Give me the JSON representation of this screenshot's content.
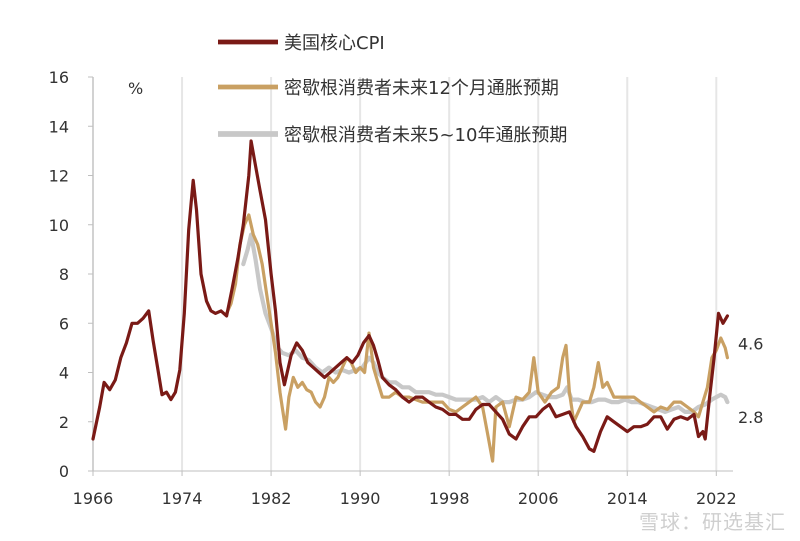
{
  "chart_data": {
    "type": "line",
    "unit_label": "%",
    "ylim": [
      0,
      16
    ],
    "yticks": [
      0,
      2,
      4,
      6,
      8,
      10,
      12,
      14,
      16
    ],
    "xlim": [
      1966,
      2023.5
    ],
    "xticks": [
      "1966",
      "1974",
      "1982",
      "1990",
      "1998",
      "2006",
      "2014",
      "2022"
    ],
    "grid": "vertical",
    "legend_position": "top",
    "series": [
      {
        "name": "美国核心CPI",
        "color": "#7a1a16",
        "points": [
          [
            1966.0,
            1.3
          ],
          [
            1966.6,
            2.6
          ],
          [
            1967.0,
            3.6
          ],
          [
            1967.5,
            3.3
          ],
          [
            1968.0,
            3.7
          ],
          [
            1968.5,
            4.6
          ],
          [
            1969.0,
            5.2
          ],
          [
            1969.5,
            6.0
          ],
          [
            1970.0,
            6.0
          ],
          [
            1970.5,
            6.2
          ],
          [
            1971.0,
            6.5
          ],
          [
            1971.4,
            5.3
          ],
          [
            1971.8,
            4.2
          ],
          [
            1972.2,
            3.1
          ],
          [
            1972.6,
            3.2
          ],
          [
            1973.0,
            2.9
          ],
          [
            1973.4,
            3.2
          ],
          [
            1973.8,
            4.1
          ],
          [
            1974.2,
            6.4
          ],
          [
            1974.6,
            9.8
          ],
          [
            1975.0,
            11.8
          ],
          [
            1975.3,
            10.6
          ],
          [
            1975.7,
            8.0
          ],
          [
            1976.2,
            6.9
          ],
          [
            1976.6,
            6.5
          ],
          [
            1977.0,
            6.4
          ],
          [
            1977.5,
            6.5
          ],
          [
            1978.0,
            6.3
          ],
          [
            1978.5,
            7.4
          ],
          [
            1979.0,
            8.6
          ],
          [
            1979.5,
            10.0
          ],
          [
            1980.0,
            12.0
          ],
          [
            1980.2,
            13.4
          ],
          [
            1980.6,
            12.4
          ],
          [
            1981.0,
            11.4
          ],
          [
            1981.5,
            10.2
          ],
          [
            1982.0,
            8.0
          ],
          [
            1982.4,
            6.5
          ],
          [
            1982.8,
            4.4
          ],
          [
            1983.2,
            3.5
          ],
          [
            1983.8,
            4.7
          ],
          [
            1984.3,
            5.2
          ],
          [
            1984.8,
            4.9
          ],
          [
            1985.3,
            4.4
          ],
          [
            1985.8,
            4.2
          ],
          [
            1986.3,
            4.0
          ],
          [
            1986.8,
            3.8
          ],
          [
            1987.3,
            4.0
          ],
          [
            1987.8,
            4.2
          ],
          [
            1988.3,
            4.4
          ],
          [
            1988.8,
            4.6
          ],
          [
            1989.3,
            4.4
          ],
          [
            1989.8,
            4.7
          ],
          [
            1990.3,
            5.2
          ],
          [
            1990.8,
            5.5
          ],
          [
            1991.2,
            5.1
          ],
          [
            1991.6,
            4.5
          ],
          [
            1992.0,
            3.8
          ],
          [
            1992.6,
            3.5
          ],
          [
            1993.2,
            3.3
          ],
          [
            1993.8,
            3.0
          ],
          [
            1994.4,
            2.8
          ],
          [
            1995.0,
            3.0
          ],
          [
            1995.6,
            3.0
          ],
          [
            1996.2,
            2.8
          ],
          [
            1996.8,
            2.6
          ],
          [
            1997.4,
            2.5
          ],
          [
            1998.0,
            2.3
          ],
          [
            1998.6,
            2.3
          ],
          [
            1999.2,
            2.1
          ],
          [
            1999.8,
            2.1
          ],
          [
            2000.4,
            2.5
          ],
          [
            2001.0,
            2.7
          ],
          [
            2001.6,
            2.7
          ],
          [
            2002.2,
            2.4
          ],
          [
            2002.8,
            2.1
          ],
          [
            2003.4,
            1.5
          ],
          [
            2004.0,
            1.3
          ],
          [
            2004.6,
            1.8
          ],
          [
            2005.2,
            2.2
          ],
          [
            2005.8,
            2.2
          ],
          [
            2006.4,
            2.5
          ],
          [
            2007.0,
            2.7
          ],
          [
            2007.6,
            2.2
          ],
          [
            2008.2,
            2.3
          ],
          [
            2008.8,
            2.4
          ],
          [
            2009.4,
            1.8
          ],
          [
            2010.0,
            1.4
          ],
          [
            2010.6,
            0.9
          ],
          [
            2011.0,
            0.8
          ],
          [
            2011.6,
            1.6
          ],
          [
            2012.2,
            2.2
          ],
          [
            2012.8,
            2.0
          ],
          [
            2013.4,
            1.8
          ],
          [
            2014.0,
            1.6
          ],
          [
            2014.6,
            1.8
          ],
          [
            2015.2,
            1.8
          ],
          [
            2015.8,
            1.9
          ],
          [
            2016.4,
            2.2
          ],
          [
            2017.0,
            2.2
          ],
          [
            2017.6,
            1.7
          ],
          [
            2018.2,
            2.1
          ],
          [
            2018.8,
            2.2
          ],
          [
            2019.4,
            2.1
          ],
          [
            2020.0,
            2.3
          ],
          [
            2020.4,
            1.4
          ],
          [
            2020.8,
            1.6
          ],
          [
            2021.0,
            1.3
          ],
          [
            2021.4,
            3.0
          ],
          [
            2021.8,
            4.6
          ],
          [
            2022.2,
            6.4
          ],
          [
            2022.6,
            6.0
          ],
          [
            2023.0,
            6.3
          ]
        ]
      },
      {
        "name": "密歇根消费者未来12个月通胀预期",
        "color": "#c9a063",
        "points": [
          [
            1978.0,
            6.4
          ],
          [
            1978.4,
            6.8
          ],
          [
            1978.8,
            7.6
          ],
          [
            1979.2,
            9.2
          ],
          [
            1979.6,
            10.0
          ],
          [
            1980.0,
            10.4
          ],
          [
            1980.4,
            9.6
          ],
          [
            1980.8,
            9.2
          ],
          [
            1981.2,
            8.4
          ],
          [
            1981.6,
            7.2
          ],
          [
            1982.0,
            6.0
          ],
          [
            1982.4,
            4.8
          ],
          [
            1982.8,
            3.2
          ],
          [
            1983.0,
            2.6
          ],
          [
            1983.3,
            1.7
          ],
          [
            1983.6,
            3.0
          ],
          [
            1984.0,
            3.8
          ],
          [
            1984.4,
            3.4
          ],
          [
            1984.8,
            3.6
          ],
          [
            1985.2,
            3.3
          ],
          [
            1985.6,
            3.2
          ],
          [
            1986.0,
            2.8
          ],
          [
            1986.4,
            2.6
          ],
          [
            1986.8,
            3.0
          ],
          [
            1987.2,
            3.8
          ],
          [
            1987.6,
            3.6
          ],
          [
            1988.0,
            3.8
          ],
          [
            1988.4,
            4.2
          ],
          [
            1988.8,
            4.6
          ],
          [
            1989.2,
            4.4
          ],
          [
            1989.6,
            4.0
          ],
          [
            1990.0,
            4.2
          ],
          [
            1990.4,
            4.0
          ],
          [
            1990.8,
            5.6
          ],
          [
            1991.2,
            4.2
          ],
          [
            1991.6,
            3.6
          ],
          [
            1992.0,
            3.0
          ],
          [
            1992.6,
            3.0
          ],
          [
            1993.2,
            3.2
          ],
          [
            1993.8,
            3.0
          ],
          [
            1994.4,
            3.0
          ],
          [
            1995.0,
            2.9
          ],
          [
            1995.6,
            2.8
          ],
          [
            1996.2,
            2.8
          ],
          [
            1996.8,
            2.8
          ],
          [
            1997.4,
            2.8
          ],
          [
            1998.0,
            2.5
          ],
          [
            1998.6,
            2.4
          ],
          [
            1999.2,
            2.6
          ],
          [
            1999.8,
            2.8
          ],
          [
            2000.4,
            3.0
          ],
          [
            2001.0,
            2.6
          ],
          [
            2001.5,
            1.4
          ],
          [
            2001.9,
            0.4
          ],
          [
            2002.2,
            2.6
          ],
          [
            2002.8,
            2.8
          ],
          [
            2003.4,
            1.8
          ],
          [
            2004.0,
            3.0
          ],
          [
            2004.6,
            2.9
          ],
          [
            2005.2,
            3.2
          ],
          [
            2005.6,
            4.6
          ],
          [
            2006.0,
            3.2
          ],
          [
            2006.6,
            2.8
          ],
          [
            2007.2,
            3.2
          ],
          [
            2007.8,
            3.4
          ],
          [
            2008.2,
            4.6
          ],
          [
            2008.5,
            5.1
          ],
          [
            2008.8,
            3.2
          ],
          [
            2009.2,
            2.0
          ],
          [
            2009.6,
            2.4
          ],
          [
            2010.0,
            2.8
          ],
          [
            2010.6,
            2.8
          ],
          [
            2011.0,
            3.4
          ],
          [
            2011.4,
            4.4
          ],
          [
            2011.8,
            3.4
          ],
          [
            2012.2,
            3.6
          ],
          [
            2012.8,
            3.0
          ],
          [
            2013.4,
            3.0
          ],
          [
            2014.0,
            3.0
          ],
          [
            2014.6,
            3.0
          ],
          [
            2015.2,
            2.8
          ],
          [
            2015.8,
            2.6
          ],
          [
            2016.4,
            2.4
          ],
          [
            2017.0,
            2.6
          ],
          [
            2017.6,
            2.5
          ],
          [
            2018.2,
            2.8
          ],
          [
            2018.8,
            2.8
          ],
          [
            2019.4,
            2.6
          ],
          [
            2020.0,
            2.4
          ],
          [
            2020.4,
            2.2
          ],
          [
            2020.8,
            2.8
          ],
          [
            2021.2,
            3.4
          ],
          [
            2021.6,
            4.6
          ],
          [
            2022.0,
            4.9
          ],
          [
            2022.4,
            5.4
          ],
          [
            2022.8,
            5.0
          ],
          [
            2023.0,
            4.6
          ]
        ]
      },
      {
        "name": "密歇根消费者未来5~10年通胀预期",
        "color": "#c8c8c8",
        "points": [
          [
            1979.5,
            8.4
          ],
          [
            1979.9,
            9.0
          ],
          [
            1980.2,
            9.6
          ],
          [
            1980.6,
            8.6
          ],
          [
            1981.0,
            7.4
          ],
          [
            1981.5,
            6.4
          ],
          [
            1982.0,
            5.8
          ],
          [
            1982.3,
            5.4
          ],
          [
            1982.6,
            5.0
          ],
          [
            1983.0,
            4.8
          ],
          [
            1983.6,
            4.7
          ],
          [
            1984.2,
            4.9
          ],
          [
            1984.8,
            4.6
          ],
          [
            1985.4,
            4.5
          ],
          [
            1986.0,
            4.2
          ],
          [
            1986.6,
            4.0
          ],
          [
            1987.2,
            4.2
          ],
          [
            1987.8,
            4.0
          ],
          [
            1988.4,
            4.1
          ],
          [
            1989.0,
            4.0
          ],
          [
            1989.6,
            4.1
          ],
          [
            1990.2,
            4.2
          ],
          [
            1990.8,
            4.6
          ],
          [
            1991.2,
            4.4
          ],
          [
            1991.6,
            4.0
          ],
          [
            1992.0,
            3.8
          ],
          [
            1992.6,
            3.6
          ],
          [
            1993.2,
            3.6
          ],
          [
            1993.8,
            3.4
          ],
          [
            1994.4,
            3.4
          ],
          [
            1995.0,
            3.2
          ],
          [
            1995.6,
            3.2
          ],
          [
            1996.2,
            3.2
          ],
          [
            1996.8,
            3.1
          ],
          [
            1997.4,
            3.1
          ],
          [
            1998.0,
            3.0
          ],
          [
            1998.6,
            2.9
          ],
          [
            1999.2,
            2.9
          ],
          [
            1999.8,
            2.9
          ],
          [
            2000.4,
            2.9
          ],
          [
            2001.0,
            3.0
          ],
          [
            2001.6,
            2.8
          ],
          [
            2002.2,
            3.0
          ],
          [
            2002.8,
            2.8
          ],
          [
            2003.4,
            2.8
          ],
          [
            2004.0,
            2.9
          ],
          [
            2004.6,
            2.9
          ],
          [
            2005.2,
            3.0
          ],
          [
            2005.8,
            3.2
          ],
          [
            2006.4,
            3.1
          ],
          [
            2007.0,
            3.0
          ],
          [
            2007.6,
            3.0
          ],
          [
            2008.2,
            3.1
          ],
          [
            2008.6,
            3.4
          ],
          [
            2009.0,
            2.9
          ],
          [
            2009.6,
            2.9
          ],
          [
            2010.2,
            2.8
          ],
          [
            2010.8,
            2.8
          ],
          [
            2011.4,
            2.9
          ],
          [
            2012.0,
            2.9
          ],
          [
            2012.6,
            2.8
          ],
          [
            2013.2,
            2.8
          ],
          [
            2013.8,
            2.9
          ],
          [
            2014.4,
            2.8
          ],
          [
            2015.0,
            2.8
          ],
          [
            2015.6,
            2.7
          ],
          [
            2016.2,
            2.6
          ],
          [
            2016.8,
            2.5
          ],
          [
            2017.4,
            2.4
          ],
          [
            2018.0,
            2.5
          ],
          [
            2018.6,
            2.6
          ],
          [
            2019.2,
            2.4
          ],
          [
            2019.8,
            2.4
          ],
          [
            2020.4,
            2.6
          ],
          [
            2021.0,
            2.7
          ],
          [
            2021.6,
            2.9
          ],
          [
            2022.0,
            3.0
          ],
          [
            2022.4,
            3.1
          ],
          [
            2022.8,
            3.0
          ],
          [
            2023.0,
            2.8
          ]
        ]
      }
    ],
    "end_labels": [
      {
        "text": "4.6",
        "value": 4.6
      },
      {
        "text": "2.8",
        "value": 2.8
      }
    ]
  },
  "watermark": "雪球：研选基汇"
}
